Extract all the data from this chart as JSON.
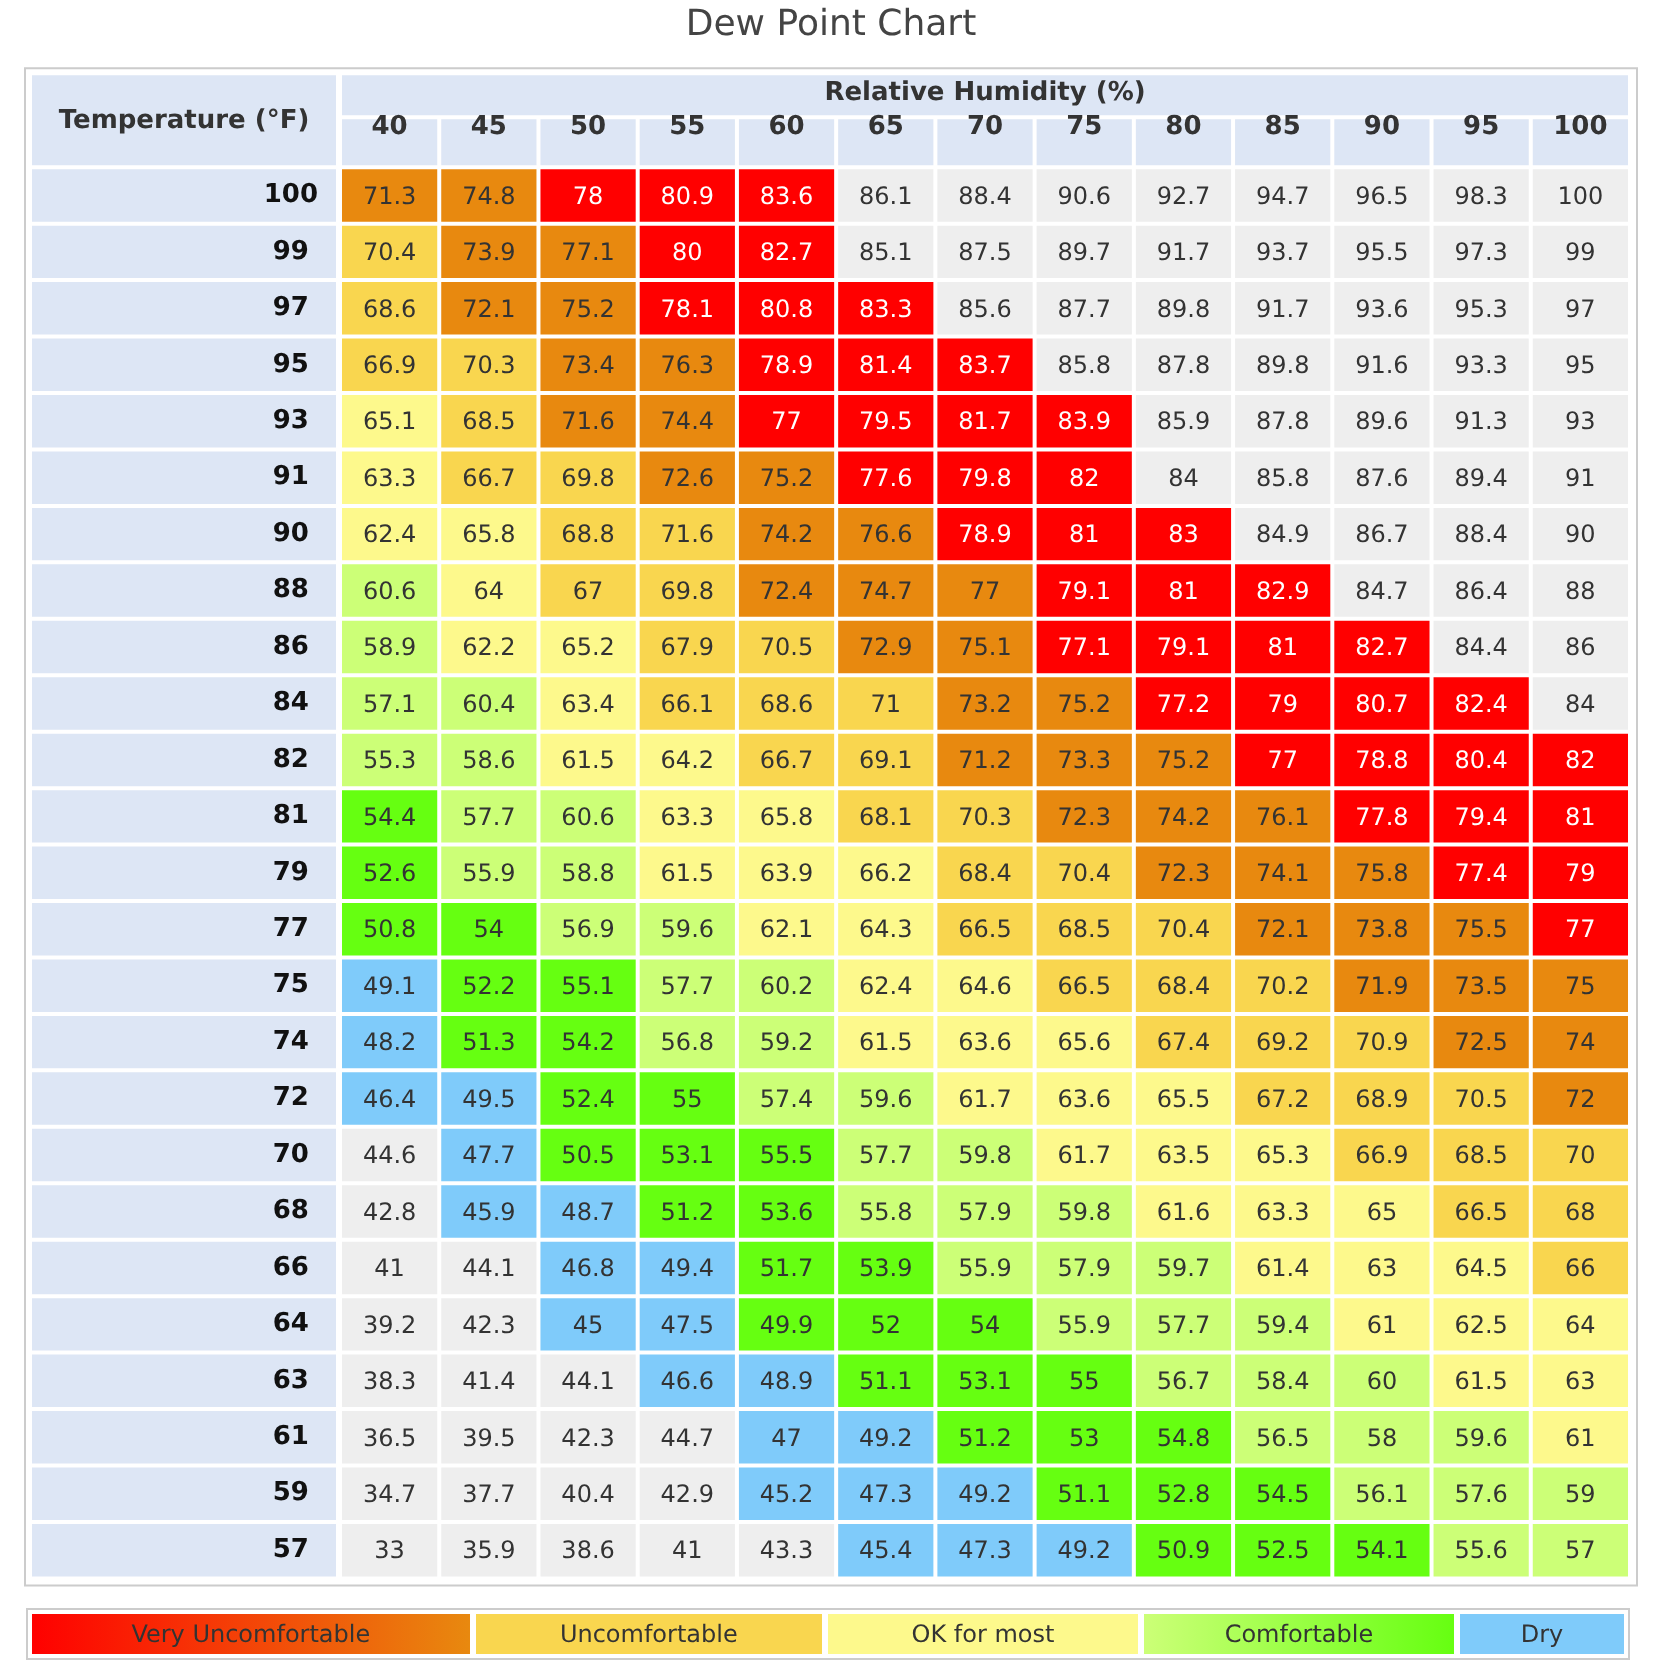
{
  "chart_data": [
    {
      "type": "heatmap",
      "title": "Dew Point Chart",
      "xlabel": "Relative Humidity (%)",
      "ylabel": "Temperature (°F)",
      "data_labels": true,
      "categories": [
        "40",
        "45",
        "50",
        "55",
        "60",
        "65",
        "70",
        "75",
        "80",
        "85",
        "90",
        "95",
        "100"
      ],
      "y_categories": [
        "100",
        "99",
        "97",
        "95",
        "93",
        "91",
        "90",
        "88",
        "86",
        "84",
        "82",
        "81",
        "79",
        "77",
        "75",
        "74",
        "72",
        "70",
        "68",
        "66",
        "64",
        "63",
        "61",
        "59",
        "57"
      ],
      "cells": [
        [
          71.3,
          74.8,
          78,
          80.9,
          83.6,
          86.1,
          88.4,
          90.6,
          92.7,
          94.7,
          96.5,
          98.3,
          100
        ],
        [
          70.4,
          73.9,
          77.1,
          80,
          82.7,
          85.1,
          87.5,
          89.7,
          91.7,
          93.7,
          95.5,
          97.3,
          99
        ],
        [
          68.6,
          72.1,
          75.2,
          78.1,
          80.8,
          83.3,
          85.6,
          87.7,
          89.8,
          91.7,
          93.6,
          95.3,
          97
        ],
        [
          66.9,
          70.3,
          73.4,
          76.3,
          78.9,
          81.4,
          83.7,
          85.8,
          87.8,
          89.8,
          91.6,
          93.3,
          95
        ],
        [
          65.1,
          68.5,
          71.6,
          74.4,
          77,
          79.5,
          81.7,
          83.9,
          85.9,
          87.8,
          89.6,
          91.3,
          93
        ],
        [
          63.3,
          66.7,
          69.8,
          72.6,
          75.2,
          77.6,
          79.8,
          82,
          84,
          85.8,
          87.6,
          89.4,
          91
        ],
        [
          62.4,
          65.8,
          68.8,
          71.6,
          74.2,
          76.6,
          78.9,
          81,
          83,
          84.9,
          86.7,
          88.4,
          90
        ],
        [
          60.6,
          64,
          67,
          69.8,
          72.4,
          74.7,
          77,
          79.1,
          81,
          82.9,
          84.7,
          86.4,
          88
        ],
        [
          58.9,
          62.2,
          65.2,
          67.9,
          70.5,
          72.9,
          75.1,
          77.1,
          79.1,
          81,
          82.7,
          84.4,
          86
        ],
        [
          57.1,
          60.4,
          63.4,
          66.1,
          68.6,
          71,
          73.2,
          75.2,
          77.2,
          79,
          80.7,
          82.4,
          84
        ],
        [
          55.3,
          58.6,
          61.5,
          64.2,
          66.7,
          69.1,
          71.2,
          73.3,
          75.2,
          77,
          78.8,
          80.4,
          82
        ],
        [
          54.4,
          57.7,
          60.6,
          63.3,
          65.8,
          68.1,
          70.3,
          72.3,
          74.2,
          76.1,
          77.8,
          79.4,
          81
        ],
        [
          52.6,
          55.9,
          58.8,
          61.5,
          63.9,
          66.2,
          68.4,
          70.4,
          72.3,
          74.1,
          75.8,
          77.4,
          79
        ],
        [
          50.8,
          54,
          56.9,
          59.6,
          62.1,
          64.3,
          66.5,
          68.5,
          70.4,
          72.1,
          73.8,
          75.5,
          77
        ],
        [
          49.1,
          52.2,
          55.1,
          57.7,
          60.2,
          62.4,
          64.6,
          66.5,
          68.4,
          70.2,
          71.9,
          73.5,
          75
        ],
        [
          48.2,
          51.3,
          54.2,
          56.8,
          59.2,
          61.5,
          63.6,
          65.6,
          67.4,
          69.2,
          70.9,
          72.5,
          74
        ],
        [
          46.4,
          49.5,
          52.4,
          55,
          57.4,
          59.6,
          61.7,
          63.6,
          65.5,
          67.2,
          68.9,
          70.5,
          72
        ],
        [
          44.6,
          47.7,
          50.5,
          53.1,
          55.5,
          57.7,
          59.8,
          61.7,
          63.5,
          65.3,
          66.9,
          68.5,
          70
        ],
        [
          42.8,
          45.9,
          48.7,
          51.2,
          53.6,
          55.8,
          57.9,
          59.8,
          61.6,
          63.3,
          65,
          66.5,
          68
        ],
        [
          41,
          44.1,
          46.8,
          49.4,
          51.7,
          53.9,
          55.9,
          57.9,
          59.7,
          61.4,
          63,
          64.5,
          66
        ],
        [
          39.2,
          42.3,
          45,
          47.5,
          49.9,
          52,
          54,
          55.9,
          57.7,
          59.4,
          61,
          62.5,
          64
        ],
        [
          38.3,
          41.4,
          44.1,
          46.6,
          48.9,
          51.1,
          53.1,
          55,
          56.7,
          58.4,
          60,
          61.5,
          63
        ],
        [
          36.5,
          39.5,
          42.3,
          44.7,
          47,
          49.2,
          51.2,
          53,
          54.8,
          56.5,
          58,
          59.6,
          61
        ],
        [
          34.7,
          37.7,
          40.4,
          42.9,
          45.2,
          47.3,
          49.2,
          51.1,
          52.8,
          54.5,
          56.1,
          57.6,
          59
        ],
        [
          33,
          35.9,
          38.6,
          41,
          43.3,
          45.4,
          47.3,
          49.2,
          50.9,
          52.5,
          54.1,
          55.6,
          57
        ]
      ],
      "colors": [
        [
          "#e8890f",
          "#e8890f",
          "#ff0000",
          "#ff0000",
          "#ff0000",
          "#eeeeee",
          "#eeeeee",
          "#eeeeee",
          "#eeeeee",
          "#eeeeee",
          "#eeeeee",
          "#eeeeee",
          "#eeeeee"
        ],
        [
          "#f9d64f",
          "#e8890f",
          "#e8890f",
          "#ff0000",
          "#ff0000",
          "#eeeeee",
          "#eeeeee",
          "#eeeeee",
          "#eeeeee",
          "#eeeeee",
          "#eeeeee",
          "#eeeeee",
          "#eeeeee"
        ],
        [
          "#f9d64f",
          "#e8890f",
          "#e8890f",
          "#ff0000",
          "#ff0000",
          "#ff0000",
          "#eeeeee",
          "#eeeeee",
          "#eeeeee",
          "#eeeeee",
          "#eeeeee",
          "#eeeeee",
          "#eeeeee"
        ],
        [
          "#f9d64f",
          "#f9d64f",
          "#e8890f",
          "#e8890f",
          "#ff0000",
          "#ff0000",
          "#ff0000",
          "#eeeeee",
          "#eeeeee",
          "#eeeeee",
          "#eeeeee",
          "#eeeeee",
          "#eeeeee"
        ],
        [
          "#fdf98c",
          "#f9d64f",
          "#e8890f",
          "#e8890f",
          "#ff0000",
          "#ff0000",
          "#ff0000",
          "#ff0000",
          "#eeeeee",
          "#eeeeee",
          "#eeeeee",
          "#eeeeee",
          "#eeeeee"
        ],
        [
          "#fdf98c",
          "#f9d64f",
          "#f9d64f",
          "#e8890f",
          "#e8890f",
          "#ff0000",
          "#ff0000",
          "#ff0000",
          "#eeeeee",
          "#eeeeee",
          "#eeeeee",
          "#eeeeee",
          "#eeeeee"
        ],
        [
          "#fdf98c",
          "#fdf98c",
          "#f9d64f",
          "#f9d64f",
          "#e8890f",
          "#e8890f",
          "#ff0000",
          "#ff0000",
          "#ff0000",
          "#eeeeee",
          "#eeeeee",
          "#eeeeee",
          "#eeeeee"
        ],
        [
          "#ccff77",
          "#fdf98c",
          "#f9d64f",
          "#f9d64f",
          "#e8890f",
          "#e8890f",
          "#e8890f",
          "#ff0000",
          "#ff0000",
          "#ff0000",
          "#eeeeee",
          "#eeeeee",
          "#eeeeee"
        ],
        [
          "#ccff77",
          "#fdf98c",
          "#fdf98c",
          "#f9d64f",
          "#f9d64f",
          "#e8890f",
          "#e8890f",
          "#ff0000",
          "#ff0000",
          "#ff0000",
          "#ff0000",
          "#eeeeee",
          "#eeeeee"
        ],
        [
          "#ccff77",
          "#ccff77",
          "#fdf98c",
          "#f9d64f",
          "#f9d64f",
          "#f9d64f",
          "#e8890f",
          "#e8890f",
          "#ff0000",
          "#ff0000",
          "#ff0000",
          "#ff0000",
          "#eeeeee"
        ],
        [
          "#ccff77",
          "#ccff77",
          "#fdf98c",
          "#fdf98c",
          "#f9d64f",
          "#f9d64f",
          "#e8890f",
          "#e8890f",
          "#e8890f",
          "#ff0000",
          "#ff0000",
          "#ff0000",
          "#ff0000"
        ],
        [
          "#66ff11",
          "#ccff77",
          "#ccff77",
          "#fdf98c",
          "#fdf98c",
          "#f9d64f",
          "#f9d64f",
          "#e8890f",
          "#e8890f",
          "#e8890f",
          "#ff0000",
          "#ff0000",
          "#ff0000"
        ],
        [
          "#66ff11",
          "#ccff77",
          "#ccff77",
          "#fdf98c",
          "#fdf98c",
          "#fdf98c",
          "#f9d64f",
          "#f9d64f",
          "#e8890f",
          "#e8890f",
          "#e8890f",
          "#ff0000",
          "#ff0000"
        ],
        [
          "#66ff11",
          "#66ff11",
          "#ccff77",
          "#ccff77",
          "#fdf98c",
          "#fdf98c",
          "#f9d64f",
          "#f9d64f",
          "#f9d64f",
          "#e8890f",
          "#e8890f",
          "#e8890f",
          "#ff0000"
        ],
        [
          "#7fcbfa",
          "#66ff11",
          "#66ff11",
          "#ccff77",
          "#ccff77",
          "#fdf98c",
          "#fdf98c",
          "#f9d64f",
          "#f9d64f",
          "#f9d64f",
          "#e8890f",
          "#e8890f",
          "#e8890f"
        ],
        [
          "#7fcbfa",
          "#66ff11",
          "#66ff11",
          "#ccff77",
          "#ccff77",
          "#fdf98c",
          "#fdf98c",
          "#fdf98c",
          "#f9d64f",
          "#f9d64f",
          "#f9d64f",
          "#e8890f",
          "#e8890f"
        ],
        [
          "#7fcbfa",
          "#7fcbfa",
          "#66ff11",
          "#66ff11",
          "#ccff77",
          "#ccff77",
          "#fdf98c",
          "#fdf98c",
          "#fdf98c",
          "#f9d64f",
          "#f9d64f",
          "#f9d64f",
          "#e8890f"
        ],
        [
          "#eeeeee",
          "#7fcbfa",
          "#66ff11",
          "#66ff11",
          "#66ff11",
          "#ccff77",
          "#ccff77",
          "#fdf98c",
          "#fdf98c",
          "#fdf98c",
          "#f9d64f",
          "#f9d64f",
          "#f9d64f"
        ],
        [
          "#eeeeee",
          "#7fcbfa",
          "#7fcbfa",
          "#66ff11",
          "#66ff11",
          "#ccff77",
          "#ccff77",
          "#ccff77",
          "#fdf98c",
          "#fdf98c",
          "#fdf98c",
          "#f9d64f",
          "#f9d64f"
        ],
        [
          "#eeeeee",
          "#eeeeee",
          "#7fcbfa",
          "#7fcbfa",
          "#66ff11",
          "#66ff11",
          "#ccff77",
          "#ccff77",
          "#ccff77",
          "#fdf98c",
          "#fdf98c",
          "#fdf98c",
          "#f9d64f"
        ],
        [
          "#eeeeee",
          "#eeeeee",
          "#7fcbfa",
          "#7fcbfa",
          "#66ff11",
          "#66ff11",
          "#66ff11",
          "#ccff77",
          "#ccff77",
          "#ccff77",
          "#fdf98c",
          "#fdf98c",
          "#fdf98c"
        ],
        [
          "#eeeeee",
          "#eeeeee",
          "#eeeeee",
          "#7fcbfa",
          "#7fcbfa",
          "#66ff11",
          "#66ff11",
          "#66ff11",
          "#ccff77",
          "#ccff77",
          "#ccff77",
          "#fdf98c",
          "#fdf98c"
        ],
        [
          "#eeeeee",
          "#eeeeee",
          "#eeeeee",
          "#eeeeee",
          "#7fcbfa",
          "#7fcbfa",
          "#66ff11",
          "#66ff11",
          "#66ff11",
          "#ccff77",
          "#ccff77",
          "#ccff77",
          "#fdf98c"
        ],
        [
          "#eeeeee",
          "#eeeeee",
          "#eeeeee",
          "#eeeeee",
          "#7fcbfa",
          "#7fcbfa",
          "#7fcbfa",
          "#66ff11",
          "#66ff11",
          "#66ff11",
          "#ccff77",
          "#ccff77",
          "#ccff77"
        ],
        [
          "#eeeeee",
          "#eeeeee",
          "#eeeeee",
          "#eeeeee",
          "#eeeeee",
          "#7fcbfa",
          "#7fcbfa",
          "#7fcbfa",
          "#66ff11",
          "#66ff11",
          "#66ff11",
          "#ccff77",
          "#ccff77"
        ]
      ]
    },
    {
      "type": "other",
      "categories": [
        "Very Uncomfortable",
        "Uncomfortable",
        "OK for most",
        "Comfortable",
        "Dry"
      ],
      "colors": [
        [
          "#ff0000",
          "#e8890f"
        ],
        "#f9d64f",
        "#fdf98c",
        [
          "#ccff77",
          "#66ff11"
        ],
        "#7fcbfa"
      ]
    }
  ]
}
